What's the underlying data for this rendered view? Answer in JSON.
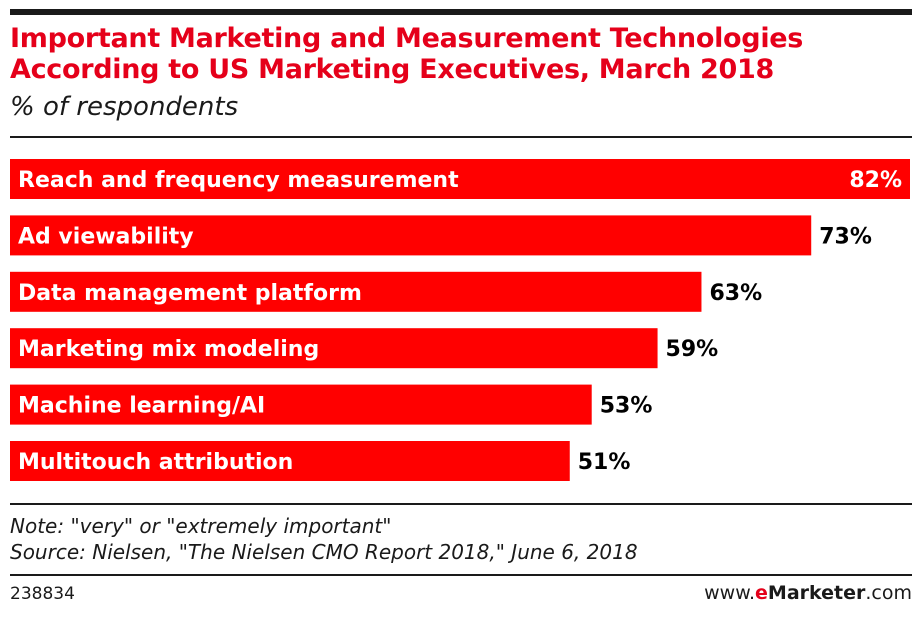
{
  "header": {
    "title_line1": "Important Marketing and Measurement Technologies",
    "title_line2": "According to US Marketing Executives, March 2018",
    "subtitle": "% of respondents"
  },
  "footer": {
    "note": "Note: \"very\" or \"extremely important\"",
    "source": "Source: Nielsen, \"The Nielsen CMO Report 2018,\" June 6, 2018",
    "chart_id": "238834",
    "brand_prefix": "www.",
    "brand_e": "e",
    "brand_name": "Marketer",
    "brand_suffix": ".com"
  },
  "colors": {
    "bar": "#ff0000",
    "title": "#e5001a",
    "bar_text": "#ffffff",
    "value_text": "#000000"
  },
  "chart_data": {
    "type": "bar",
    "orientation": "horizontal",
    "title": "Important Marketing and Measurement Technologies According to US Marketing Executives, March 2018",
    "subtitle": "% of respondents",
    "unit": "%",
    "xlim": [
      0,
      82
    ],
    "categories": [
      "Reach and frequency measurement",
      "Ad viewability",
      "Data management platform",
      "Marketing mix modeling",
      "Machine learning/AI",
      "Multitouch attribution"
    ],
    "values": [
      82,
      73,
      63,
      59,
      53,
      51
    ],
    "value_labels": [
      "82%",
      "73%",
      "63%",
      "59%",
      "53%",
      "51%"
    ]
  }
}
